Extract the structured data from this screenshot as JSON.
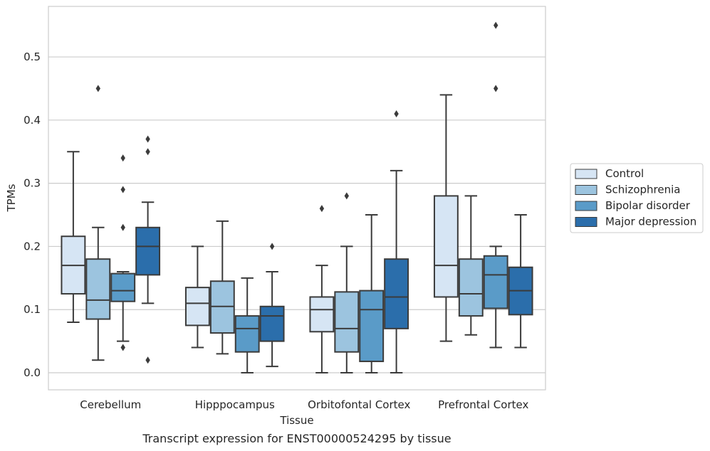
{
  "chart_data": {
    "type": "box",
    "title": "",
    "caption": "Transcript expression for ENST00000524295 by tissue",
    "xlabel": "Tissue",
    "ylabel": "TPMs",
    "ylim": [
      -0.027,
      0.58
    ],
    "yticks": [
      0.0,
      0.1,
      0.2,
      0.3,
      0.4,
      0.5
    ],
    "ytick_labels": [
      "0.0",
      "0.1",
      "0.2",
      "0.3",
      "0.4",
      "0.5"
    ],
    "grid": "horizontal",
    "legend_position": "right",
    "categories": [
      "Cerebellum",
      "Hipppocampus",
      "Orbitofontal Cortex",
      "Prefrontal Cortex"
    ],
    "series": [
      {
        "name": "Control",
        "color": "#d6e5f4",
        "boxes": [
          {
            "whisker_low": 0.08,
            "q1": 0.125,
            "median": 0.17,
            "q3": 0.216,
            "whisker_high": 0.35,
            "outliers": []
          },
          {
            "whisker_low": 0.04,
            "q1": 0.075,
            "median": 0.11,
            "q3": 0.135,
            "whisker_high": 0.2,
            "outliers": []
          },
          {
            "whisker_low": 0.0,
            "q1": 0.065,
            "median": 0.1,
            "q3": 0.12,
            "whisker_high": 0.17,
            "outliers": [
              0.26
            ]
          },
          {
            "whisker_low": 0.05,
            "q1": 0.12,
            "median": 0.17,
            "q3": 0.28,
            "whisker_high": 0.44,
            "outliers": []
          }
        ]
      },
      {
        "name": "Schizophrenia",
        "color": "#9cc4df",
        "boxes": [
          {
            "whisker_low": 0.02,
            "q1": 0.085,
            "median": 0.115,
            "q3": 0.18,
            "whisker_high": 0.23,
            "outliers": [
              0.45
            ]
          },
          {
            "whisker_low": 0.03,
            "q1": 0.063,
            "median": 0.105,
            "q3": 0.145,
            "whisker_high": 0.24,
            "outliers": []
          },
          {
            "whisker_low": 0.0,
            "q1": 0.033,
            "median": 0.07,
            "q3": 0.128,
            "whisker_high": 0.2,
            "outliers": [
              0.28
            ]
          },
          {
            "whisker_low": 0.06,
            "q1": 0.09,
            "median": 0.125,
            "q3": 0.18,
            "whisker_high": 0.28,
            "outliers": []
          }
        ]
      },
      {
        "name": "Bipolar disorder",
        "color": "#5a9bc8",
        "boxes": [
          {
            "whisker_low": 0.05,
            "q1": 0.113,
            "median": 0.13,
            "q3": 0.157,
            "whisker_high": 0.16,
            "outliers": [
              0.04,
              0.23,
              0.29,
              0.34
            ]
          },
          {
            "whisker_low": 0.0,
            "q1": 0.033,
            "median": 0.07,
            "q3": 0.09,
            "whisker_high": 0.15,
            "outliers": []
          },
          {
            "whisker_low": 0.0,
            "q1": 0.018,
            "median": 0.1,
            "q3": 0.13,
            "whisker_high": 0.25,
            "outliers": []
          },
          {
            "whisker_low": 0.04,
            "q1": 0.102,
            "median": 0.155,
            "q3": 0.185,
            "whisker_high": 0.2,
            "outliers": [
              0.45,
              0.55
            ]
          }
        ]
      },
      {
        "name": "Major depression",
        "color": "#2b6eab",
        "boxes": [
          {
            "whisker_low": 0.11,
            "q1": 0.155,
            "median": 0.2,
            "q3": 0.23,
            "whisker_high": 0.27,
            "outliers": [
              0.02,
              0.35,
              0.37
            ]
          },
          {
            "whisker_low": 0.01,
            "q1": 0.05,
            "median": 0.09,
            "q3": 0.105,
            "whisker_high": 0.16,
            "outliers": [
              0.2
            ]
          },
          {
            "whisker_low": 0.0,
            "q1": 0.07,
            "median": 0.12,
            "q3": 0.18,
            "whisker_high": 0.32,
            "outliers": [
              0.41
            ]
          },
          {
            "whisker_low": 0.04,
            "q1": 0.092,
            "median": 0.13,
            "q3": 0.167,
            "whisker_high": 0.25,
            "outliers": []
          }
        ]
      }
    ]
  }
}
